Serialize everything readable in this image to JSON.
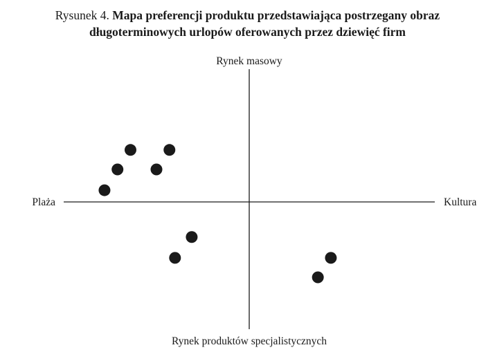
{
  "figure": {
    "prefix": "Rysunek 4.",
    "title_line1": "Mapa preferencji produktu przedstawiająca postrzegany obraz",
    "title_line2": "długoterminowych urlopów oferowanych przez dziewięć firm"
  },
  "chart_data": {
    "type": "scatter",
    "title": "Mapa preferencji produktu przedstawiająca postrzegany obraz długoterminowych urlopów oferowanych przez dziewięć firm",
    "axis_labels": {
      "top": "Rynek masowy",
      "bottom": "Rynek produktów specjalistycznych",
      "left": "Plaża",
      "right": "Kultura"
    },
    "xlim": [
      -10,
      10
    ],
    "ylim": [
      -10,
      10
    ],
    "grid": false,
    "legend": "none",
    "point_color": "#1a1a1a",
    "points": [
      {
        "x": -6.4,
        "y": 4.0
      },
      {
        "x": -7.1,
        "y": 2.5
      },
      {
        "x": -7.8,
        "y": 0.9
      },
      {
        "x": -4.3,
        "y": 4.0
      },
      {
        "x": -5.0,
        "y": 2.5
      },
      {
        "x": -3.1,
        "y": -2.7
      },
      {
        "x": -4.0,
        "y": -4.3
      },
      {
        "x": 4.4,
        "y": -4.3
      },
      {
        "x": 3.7,
        "y": -5.8
      }
    ]
  }
}
